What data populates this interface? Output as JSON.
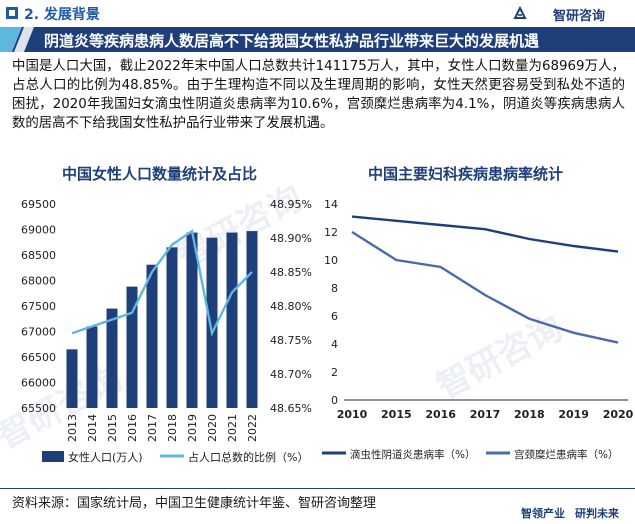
{
  "header": {
    "section_title": "2. 发展背景",
    "brand": "智研咨询"
  },
  "banner": {
    "title": "阴道炎等疾病患病人数居高不下给我国女性私护品行业带来巨大的发展机遇"
  },
  "paragraph": "中国是人口大国，截止2022年末中国人口总数共计141175万人，其中，女性人口数量为68969万人，占总人口的比例为48.85%。由于生理构造不同以及生理周期的影响，女性天然更容易受到私处不适的困扰，2020年我国妇女滴虫性阴道炎患病率为10.6%，宫颈糜烂患病率为4.1%，阴道炎等疾病患病人数的居高不下给我国女性私护品行业带来了发展机遇。",
  "watermark": "智研咨询",
  "source": "资料来源：国家统计局，中国卫生健康统计年鉴、智研咨询整理",
  "footer": {
    "left": "智领产业",
    "right": "研判未来"
  },
  "colors": {
    "navy": "#1e3f7a",
    "light_blue": "#5fb7e0",
    "series2": "#4a6aa8"
  },
  "chart_data": [
    {
      "type": "bar+line",
      "title": "中国女性人口数量统计及占比",
      "categories": [
        "2013",
        "2014",
        "2015",
        "2016",
        "2017",
        "2018",
        "2019",
        "2020",
        "2021",
        "2022"
      ],
      "series": [
        {
          "name": "女性人口(万人)",
          "type": "bar",
          "axis": "left",
          "values": [
            66650,
            67100,
            67450,
            67880,
            68310,
            68650,
            68940,
            68840,
            68940,
            68969
          ]
        },
        {
          "name": "占人口总数的比例（%）",
          "type": "line",
          "axis": "right",
          "values": [
            48.76,
            48.77,
            48.78,
            48.79,
            48.85,
            48.89,
            48.91,
            48.76,
            48.82,
            48.85
          ]
        }
      ],
      "yleft": {
        "min": 65500,
        "max": 69500,
        "ticks": [
          "65500",
          "66000",
          "66500",
          "67000",
          "67500",
          "68000",
          "68500",
          "69000",
          "69500"
        ]
      },
      "yright": {
        "min": 48.65,
        "max": 48.95,
        "ticks": [
          "48.65%",
          "48.70%",
          "48.75%",
          "48.80%",
          "48.85%",
          "48.90%",
          "48.95%"
        ]
      }
    },
    {
      "type": "line",
      "title": "中国主要妇科疾病患病率统计",
      "categories": [
        "2010",
        "2015",
        "2016",
        "2017",
        "2018",
        "2019",
        "2020"
      ],
      "series": [
        {
          "name": "滴虫性阴道炎患病率（%）",
          "values": [
            13.1,
            12.8,
            12.5,
            12.2,
            11.5,
            11.0,
            10.6
          ]
        },
        {
          "name": "宫颈糜烂患病率（%）",
          "values": [
            12.0,
            10.0,
            9.5,
            7.5,
            5.8,
            4.8,
            4.1
          ]
        }
      ],
      "ylim": [
        0,
        14
      ],
      "ticks": [
        "0",
        "2",
        "4",
        "6",
        "8",
        "10",
        "12",
        "14"
      ]
    }
  ]
}
